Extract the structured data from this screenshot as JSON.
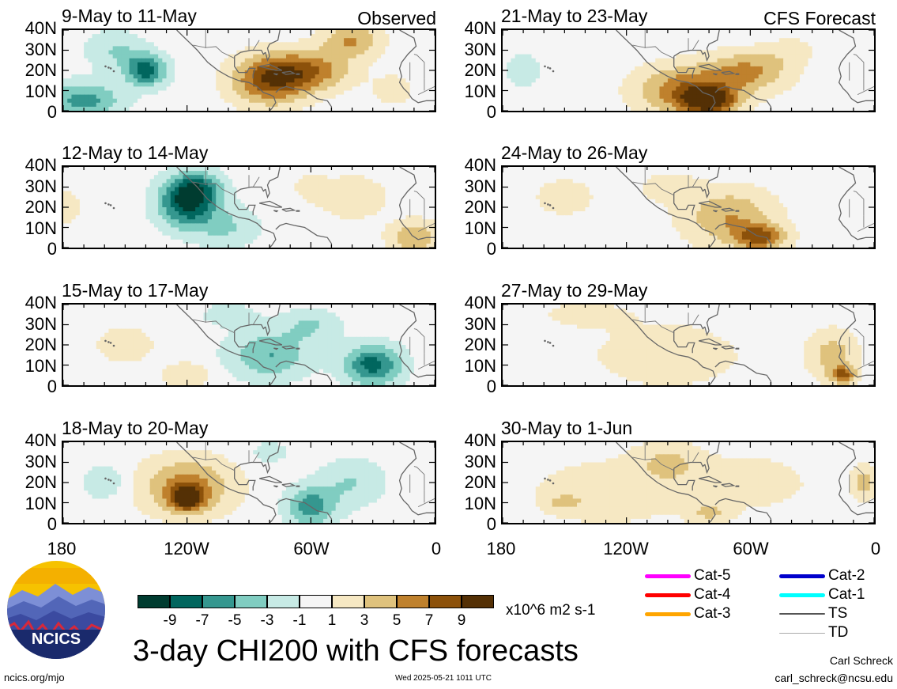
{
  "panels": [
    {
      "title": "9-May to 11-May",
      "tag": "Observed"
    },
    {
      "title": "12-May to 14-May",
      "tag": ""
    },
    {
      "title": "15-May to 17-May",
      "tag": ""
    },
    {
      "title": "18-May to 20-May",
      "tag": ""
    },
    {
      "title": "21-May to 23-May",
      "tag": "CFS Forecast"
    },
    {
      "title": "24-May to 26-May",
      "tag": ""
    },
    {
      "title": "27-May to 29-May",
      "tag": ""
    },
    {
      "title": "30-May to 1-Jun",
      "tag": ""
    }
  ],
  "y_ticks": [
    "40N",
    "30N",
    "20N",
    "10N",
    "0"
  ],
  "x_ticks": [
    "180",
    "120W",
    "60W",
    "0"
  ],
  "field_blobs": [
    [
      [
        -170,
        5,
        18,
        9,
        -6
      ],
      [
        -140,
        20,
        10,
        8,
        -8
      ],
      [
        -155,
        30,
        14,
        10,
        -3
      ],
      [
        -80,
        15,
        18,
        12,
        8
      ],
      [
        -60,
        20,
        20,
        10,
        6
      ],
      [
        -40,
        35,
        14,
        8,
        5
      ],
      [
        -20,
        10,
        10,
        8,
        2
      ]
    ],
    [
      [
        -120,
        22,
        14,
        12,
        -9
      ],
      [
        -115,
        30,
        12,
        8,
        -5
      ],
      [
        -100,
        10,
        16,
        10,
        -3
      ],
      [
        -180,
        20,
        8,
        8,
        3
      ],
      [
        -40,
        25,
        16,
        10,
        3
      ],
      [
        -10,
        5,
        12,
        8,
        5
      ],
      [
        -60,
        30,
        8,
        6,
        2
      ]
    ],
    [
      [
        -30,
        10,
        14,
        10,
        -8
      ],
      [
        -80,
        15,
        20,
        12,
        -5
      ],
      [
        -60,
        30,
        14,
        8,
        -3
      ],
      [
        -120,
        5,
        12,
        6,
        3
      ],
      [
        -150,
        20,
        16,
        10,
        2
      ],
      [
        -100,
        35,
        14,
        6,
        -2
      ]
    ],
    [
      [
        -120,
        18,
        22,
        14,
        6
      ],
      [
        -120,
        12,
        8,
        6,
        8
      ],
      [
        -60,
        8,
        12,
        10,
        -6
      ],
      [
        -40,
        20,
        16,
        12,
        -3
      ],
      [
        -160,
        20,
        10,
        8,
        -3
      ],
      [
        -80,
        35,
        10,
        6,
        -2
      ]
    ],
    [
      [
        -90,
        10,
        24,
        12,
        7
      ],
      [
        -80,
        5,
        12,
        6,
        9
      ],
      [
        -60,
        20,
        20,
        10,
        5
      ],
      [
        -170,
        20,
        8,
        8,
        -3
      ],
      [
        -40,
        30,
        10,
        6,
        2
      ]
    ],
    [
      [
        -70,
        15,
        22,
        14,
        5
      ],
      [
        -55,
        5,
        12,
        6,
        7
      ],
      [
        -150,
        25,
        16,
        10,
        2
      ],
      [
        -100,
        30,
        14,
        8,
        2
      ],
      [
        -10,
        20,
        6,
        8,
        -1
      ]
    ],
    [
      [
        -20,
        15,
        12,
        12,
        4
      ],
      [
        -15,
        5,
        6,
        4,
        7
      ],
      [
        -100,
        15,
        40,
        18,
        2
      ],
      [
        -140,
        35,
        20,
        6,
        2
      ],
      [
        -170,
        5,
        8,
        4,
        -1
      ],
      [
        -70,
        30,
        8,
        5,
        -1
      ]
    ],
    [
      [
        -130,
        15,
        40,
        18,
        2
      ],
      [
        -60,
        20,
        30,
        14,
        2
      ],
      [
        -100,
        30,
        16,
        10,
        3
      ],
      [
        -5,
        20,
        6,
        8,
        4
      ],
      [
        -150,
        10,
        8,
        4,
        3
      ],
      [
        -80,
        5,
        10,
        5,
        3
      ]
    ]
  ],
  "colorbar": {
    "colors": [
      "#003c30",
      "#01665e",
      "#35978f",
      "#80cdc1",
      "#c7eae5",
      "#f5f5f5",
      "#f6e8c3",
      "#dfc27d",
      "#bf812d",
      "#8c510a",
      "#543005"
    ],
    "labels": [
      "-9",
      "-7",
      "-5",
      "-3",
      "-1",
      "1",
      "3",
      "5",
      "7",
      "9"
    ],
    "units": "x10^6 m2 s-1"
  },
  "legend": [
    {
      "label": "Cat-5",
      "color": "#ff00ff"
    },
    {
      "label": "Cat-4",
      "color": "#ff0000"
    },
    {
      "label": "Cat-3",
      "color": "#ffa500"
    },
    {
      "label": "Cat-2",
      "color": "#0000cc"
    },
    {
      "label": "Cat-1",
      "color": "#00ffff"
    },
    {
      "label": "TS",
      "color": "#555555"
    },
    {
      "label": "TD",
      "color": "#aaaaaa"
    }
  ],
  "logo_text": "NCICS",
  "main_title": "3-day CHI200 with CFS forecasts",
  "site": "ncics.org/mjo",
  "timestamp": "Wed 2025-05-21 1011 UTC",
  "author": "Carl Schreck",
  "email": "carl_schreck@ncsu.edu"
}
